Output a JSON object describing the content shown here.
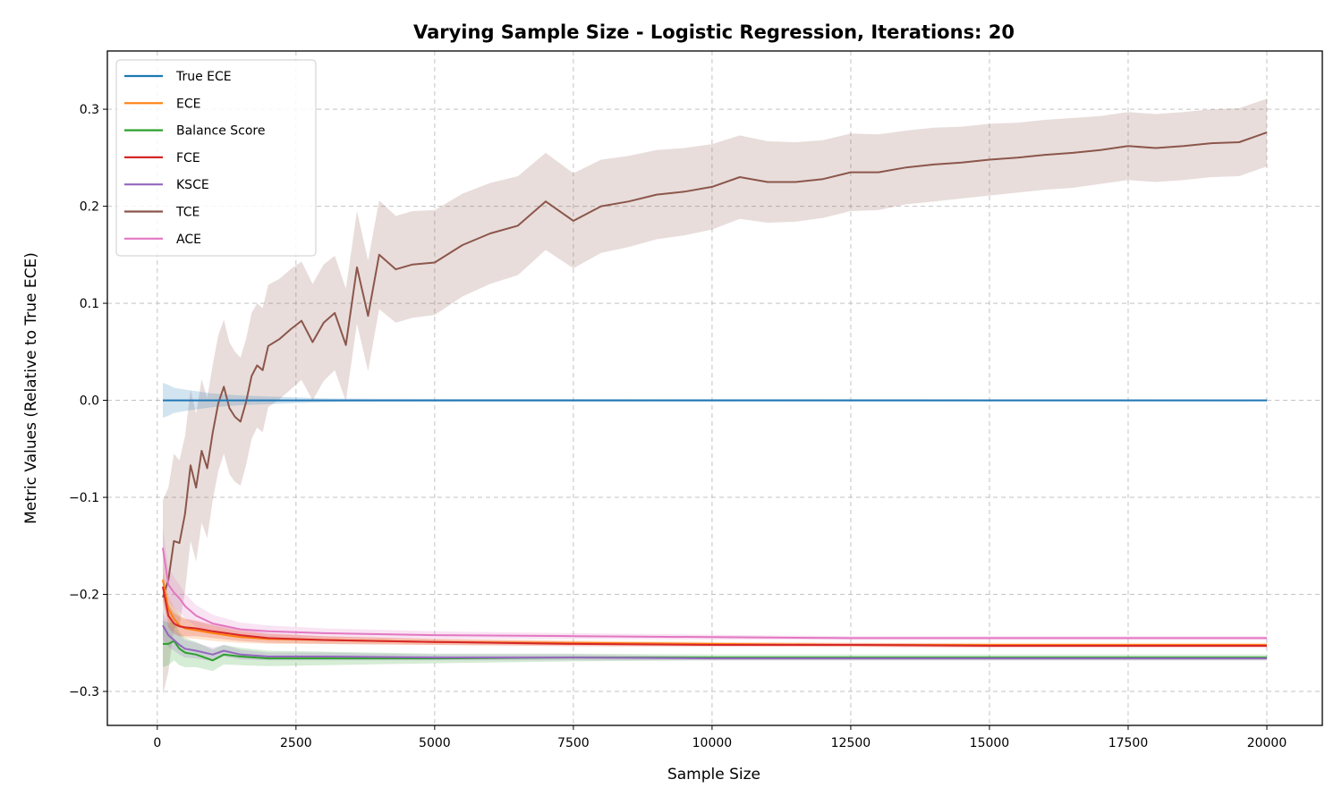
{
  "chart_data": {
    "type": "line",
    "title": "Varying Sample Size - Logistic Regression, Iterations: 20",
    "xlabel": "Sample Size",
    "ylabel": "Metric Values (Relative to True ECE)",
    "xlim": [
      -900,
      21000
    ],
    "ylim": [
      -0.335,
      0.36
    ],
    "xticks": [
      0,
      2500,
      5000,
      7500,
      10000,
      12500,
      15000,
      17500,
      20000
    ],
    "xtick_labels": [
      "0",
      "2500",
      "5000",
      "7500",
      "10000",
      "12500",
      "15000",
      "17500",
      "20000"
    ],
    "yticks": [
      -0.3,
      -0.2,
      -0.1,
      0.0,
      0.1,
      0.2,
      0.3
    ],
    "ytick_labels": [
      "−0.3",
      "−0.2",
      "−0.1",
      "0.0",
      "0.1",
      "0.2",
      "0.3"
    ],
    "grid": true,
    "legend_position": "top-left",
    "series": [
      {
        "name": "True ECE",
        "color": "#1f77b4",
        "x": [
          100,
          200,
          300,
          500,
          750,
          1000,
          1500,
          2000,
          2500,
          3000,
          4000,
          20000
        ],
        "y": [
          0,
          0,
          0,
          0,
          0,
          0,
          0,
          0,
          0,
          0,
          0,
          0
        ],
        "band": [
          0.018,
          0.016,
          0.013,
          0.011,
          0.009,
          0.007,
          0.005,
          0.004,
          0.003,
          0.002,
          0.0015,
          0.001
        ]
      },
      {
        "name": "ECE",
        "color": "#ff7f0e",
        "x": [
          100,
          200,
          300,
          400,
          500,
          700,
          1000,
          1500,
          2000,
          3000,
          5000,
          7500,
          10000,
          12500,
          15000,
          17500,
          20000
        ],
        "y": [
          -0.185,
          -0.215,
          -0.225,
          -0.232,
          -0.235,
          -0.237,
          -0.24,
          -0.244,
          -0.246,
          -0.247,
          -0.249,
          -0.25,
          -0.251,
          -0.252,
          -0.252,
          -0.252,
          -0.252
        ],
        "band": [
          0.015,
          0.013,
          0.012,
          0.011,
          0.01,
          0.009,
          0.008,
          0.006,
          0.005,
          0.004,
          0.003,
          0.0025,
          0.002,
          0.002,
          0.002,
          0.002,
          0.002
        ]
      },
      {
        "name": "Balance Score",
        "color": "#2ca02c",
        "x": [
          100,
          200,
          300,
          400,
          500,
          700,
          1000,
          1200,
          1500,
          2000,
          3000,
          5000,
          7500,
          10000,
          12500,
          15000,
          17500,
          20000
        ],
        "y": [
          -0.251,
          -0.251,
          -0.248,
          -0.256,
          -0.26,
          -0.262,
          -0.268,
          -0.262,
          -0.264,
          -0.266,
          -0.266,
          -0.266,
          -0.265,
          -0.265,
          -0.265,
          -0.265,
          -0.265,
          -0.265
        ],
        "band": [
          0.024,
          0.022,
          0.02,
          0.017,
          0.015,
          0.013,
          0.011,
          0.01,
          0.009,
          0.008,
          0.007,
          0.005,
          0.004,
          0.003,
          0.003,
          0.003,
          0.003,
          0.003
        ]
      },
      {
        "name": "FCE",
        "color": "#d62728",
        "x": [
          100,
          200,
          300,
          400,
          500,
          700,
          1000,
          1500,
          2000,
          3000,
          5000,
          7500,
          10000,
          12500,
          15000,
          17500,
          20000
        ],
        "y": [
          -0.192,
          -0.222,
          -0.23,
          -0.233,
          -0.234,
          -0.235,
          -0.238,
          -0.242,
          -0.245,
          -0.247,
          -0.249,
          -0.251,
          -0.252,
          -0.252,
          -0.253,
          -0.253,
          -0.253
        ],
        "band": [
          0.014,
          0.012,
          0.011,
          0.01,
          0.009,
          0.008,
          0.007,
          0.006,
          0.005,
          0.004,
          0.003,
          0.0025,
          0.002,
          0.002,
          0.002,
          0.002,
          0.002
        ]
      },
      {
        "name": "KSCE",
        "color": "#9467bd",
        "x": [
          100,
          200,
          300,
          400,
          500,
          700,
          1000,
          1200,
          1500,
          2000,
          3000,
          5000,
          7500,
          10000,
          12500,
          15000,
          17500,
          20000
        ],
        "y": [
          -0.232,
          -0.242,
          -0.247,
          -0.252,
          -0.256,
          -0.258,
          -0.262,
          -0.258,
          -0.262,
          -0.264,
          -0.264,
          -0.265,
          -0.265,
          -0.266,
          -0.266,
          -0.266,
          -0.266,
          -0.266
        ],
        "band": [
          0.014,
          0.012,
          0.011,
          0.01,
          0.009,
          0.008,
          0.007,
          0.006,
          0.005,
          0.004,
          0.004,
          0.003,
          0.003,
          0.002,
          0.002,
          0.002,
          0.002,
          0.002
        ]
      },
      {
        "name": "TCE",
        "color": "#8c564b",
        "x": [
          100,
          200,
          300,
          400,
          500,
          600,
          700,
          800,
          900,
          1000,
          1100,
          1200,
          1300,
          1400,
          1500,
          1600,
          1700,
          1800,
          1900,
          2000,
          2200,
          2400,
          2600,
          2800,
          3000,
          3200,
          3400,
          3600,
          3800,
          4000,
          4300,
          4600,
          5000,
          5500,
          6000,
          6500,
          7000,
          7500,
          8000,
          8500,
          9000,
          9500,
          10000,
          10500,
          11000,
          11500,
          12000,
          12500,
          13000,
          13500,
          14000,
          14500,
          15000,
          15500,
          16000,
          16500,
          17000,
          17500,
          18000,
          18500,
          19000,
          19500,
          20000
        ],
        "y": [
          -0.203,
          -0.185,
          -0.145,
          -0.147,
          -0.117,
          -0.067,
          -0.09,
          -0.052,
          -0.07,
          -0.033,
          -0.003,
          0.014,
          -0.008,
          -0.017,
          -0.022,
          -0.002,
          0.025,
          0.036,
          0.031,
          0.056,
          0.063,
          0.073,
          0.082,
          0.06,
          0.08,
          0.09,
          0.057,
          0.137,
          0.087,
          0.15,
          0.135,
          0.14,
          0.142,
          0.16,
          0.172,
          0.18,
          0.205,
          0.185,
          0.2,
          0.205,
          0.212,
          0.215,
          0.22,
          0.23,
          0.225,
          0.225,
          0.228,
          0.235,
          0.235,
          0.24,
          0.243,
          0.245,
          0.248,
          0.25,
          0.253,
          0.255,
          0.258,
          0.262,
          0.26,
          0.262,
          0.265,
          0.266,
          0.276
        ],
        "band": [
          0.1,
          0.095,
          0.09,
          0.085,
          0.08,
          0.078,
          0.076,
          0.074,
          0.072,
          0.07,
          0.07,
          0.069,
          0.068,
          0.067,
          0.066,
          0.065,
          0.065,
          0.064,
          0.064,
          0.063,
          0.062,
          0.062,
          0.061,
          0.06,
          0.06,
          0.059,
          0.058,
          0.058,
          0.057,
          0.056,
          0.055,
          0.055,
          0.054,
          0.053,
          0.052,
          0.051,
          0.05,
          0.049,
          0.048,
          0.047,
          0.046,
          0.045,
          0.044,
          0.043,
          0.042,
          0.041,
          0.04,
          0.04,
          0.039,
          0.038,
          0.038,
          0.037,
          0.037,
          0.036,
          0.036,
          0.036,
          0.035,
          0.035,
          0.035,
          0.035,
          0.035,
          0.035,
          0.035
        ]
      },
      {
        "name": "ACE",
        "color": "#e377c2",
        "x": [
          100,
          200,
          300,
          400,
          500,
          700,
          1000,
          1500,
          2000,
          3000,
          5000,
          7500,
          10000,
          12500,
          15000,
          17500,
          20000
        ],
        "y": [
          -0.152,
          -0.19,
          -0.198,
          -0.204,
          -0.212,
          -0.222,
          -0.23,
          -0.236,
          -0.238,
          -0.24,
          -0.242,
          -0.243,
          -0.244,
          -0.245,
          -0.245,
          -0.245,
          -0.245
        ],
        "band": [
          0.022,
          0.018,
          0.016,
          0.014,
          0.013,
          0.011,
          0.009,
          0.007,
          0.006,
          0.005,
          0.004,
          0.003,
          0.0025,
          0.002,
          0.002,
          0.002,
          0.002
        ]
      }
    ]
  }
}
